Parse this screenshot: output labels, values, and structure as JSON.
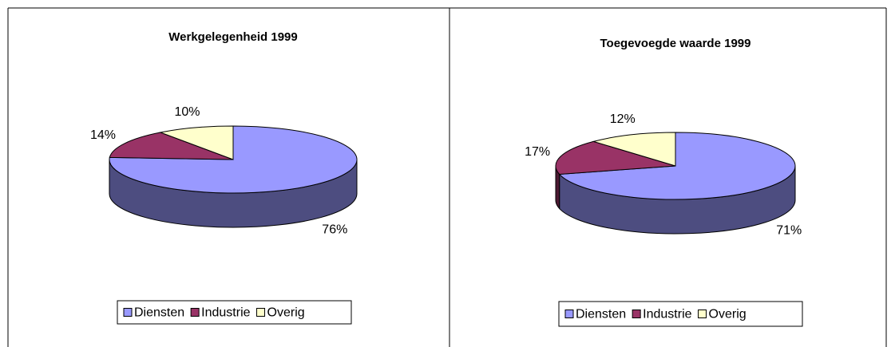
{
  "chart_data": [
    {
      "type": "pie3d",
      "title": "Werkgelegenheid 1999",
      "categories": [
        "Diensten",
        "Industrie",
        "Overig"
      ],
      "values": [
        76,
        14,
        10
      ],
      "value_labels": [
        "76%",
        "14%",
        "10%"
      ],
      "colors": [
        "#9999ff",
        "#993366",
        "#ffffcc"
      ],
      "legend": "bottom"
    },
    {
      "type": "pie3d",
      "title": "Toegevoegde waarde 1999",
      "categories": [
        "Diensten",
        "Industrie",
        "Overig"
      ],
      "values": [
        71,
        17,
        12
      ],
      "value_labels": [
        "71%",
        "17%",
        "12%"
      ],
      "colors": [
        "#9999ff",
        "#993366",
        "#ffffcc"
      ],
      "legend": "bottom"
    }
  ]
}
